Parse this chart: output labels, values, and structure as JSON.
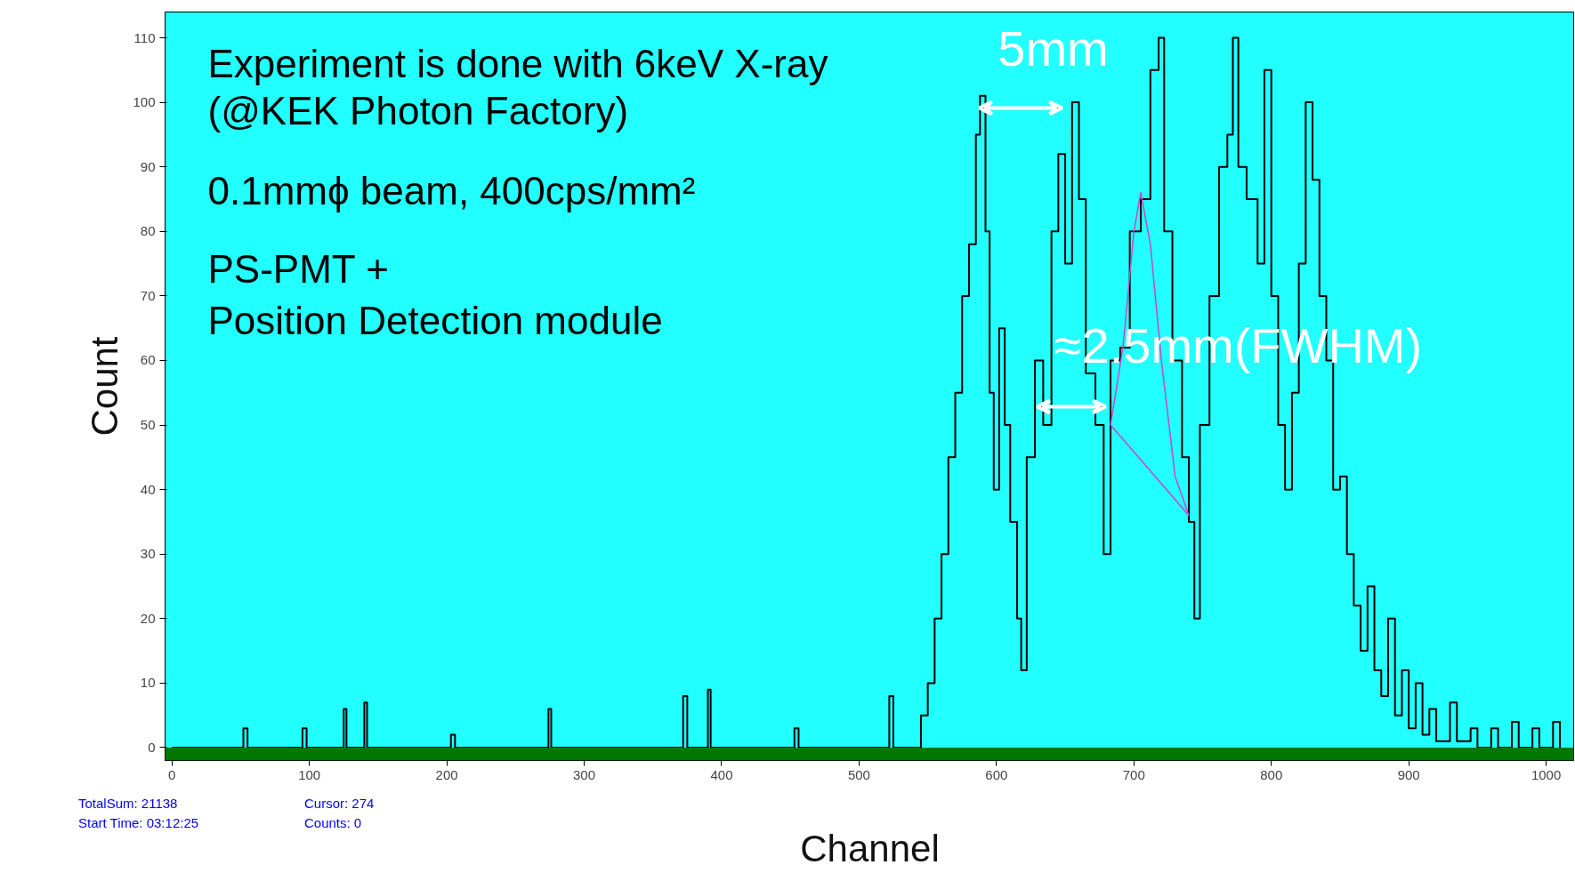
{
  "chart_data": {
    "type": "step",
    "xlabel": "Channel",
    "ylabel": "Count",
    "xlim": [
      -5,
      1020
    ],
    "ylim": [
      -2,
      114
    ],
    "xticks": [
      0,
      100,
      200,
      300,
      400,
      500,
      600,
      700,
      800,
      900,
      1000
    ],
    "yticks": [
      0,
      10,
      20,
      30,
      40,
      50,
      60,
      70,
      80,
      90,
      100,
      110
    ],
    "grid": false,
    "series": [
      {
        "color": "#000000",
        "x": [
          0,
          50,
          52,
          55,
          58,
          95,
          98,
          125,
          127,
          140,
          142,
          200,
          203,
          206,
          270,
          274,
          276,
          370,
          372,
          375,
          378,
          390,
          392,
          450,
          453,
          456,
          520,
          522,
          525,
          540,
          545,
          550,
          555,
          560,
          565,
          570,
          575,
          580,
          585,
          588,
          592,
          595,
          598,
          602,
          606,
          610,
          615,
          618,
          622,
          628,
          634,
          640,
          645,
          650,
          655,
          660,
          665,
          672,
          678,
          683,
          690,
          697,
          705,
          712,
          718,
          722,
          728,
          735,
          740,
          744,
          748,
          755,
          762,
          768,
          772,
          776,
          782,
          790,
          795,
          800,
          805,
          810,
          815,
          820,
          825,
          830,
          835,
          840,
          845,
          850,
          855,
          860,
          865,
          870,
          875,
          880,
          885,
          890,
          895,
          900,
          905,
          910,
          915,
          920,
          930,
          935,
          945,
          950,
          960,
          965,
          975,
          980,
          990,
          995,
          1005,
          1010
        ],
        "values": [
          0,
          0,
          3,
          0,
          0,
          3,
          0,
          6,
          0,
          7,
          0,
          0,
          2,
          0,
          0,
          6,
          0,
          0,
          8,
          0,
          0,
          9,
          0,
          0,
          3,
          0,
          0,
          8,
          0,
          0,
          5,
          10,
          20,
          30,
          45,
          55,
          70,
          78,
          95,
          101,
          80,
          55,
          40,
          65,
          50,
          35,
          20,
          12,
          45,
          60,
          50,
          80,
          92,
          75,
          100,
          85,
          58,
          50,
          30,
          60,
          62,
          80,
          85,
          105,
          110,
          80,
          60,
          45,
          35,
          20,
          50,
          70,
          90,
          95,
          110,
          90,
          85,
          75,
          105,
          70,
          50,
          40,
          55,
          75,
          100,
          88,
          70,
          60,
          40,
          42,
          30,
          22,
          15,
          25,
          12,
          8,
          20,
          5,
          12,
          3,
          10,
          2,
          6,
          1,
          7,
          1,
          3,
          0,
          3,
          0,
          4,
          0,
          3,
          0,
          4,
          0
        ]
      },
      {
        "type": "line",
        "color": "#cc44cc",
        "x": [
          683,
          692,
          700,
          705,
          712,
          720,
          730,
          740
        ],
        "values": [
          50,
          62,
          80,
          86,
          78,
          60,
          42,
          36
        ]
      },
      {
        "type": "line",
        "color": "#cc44cc",
        "x": [
          683,
          740
        ],
        "values": [
          50,
          36
        ]
      }
    ],
    "bands": [
      {
        "axis": "y",
        "from": -2,
        "to": 0,
        "color": "#007700"
      }
    ],
    "annotations": [
      "Experiment is done with 6keV X-ray",
      "(@KEK Photon Factory)",
      "0.1mmϕ beam, 400cps/mm²",
      "PS-PMT +",
      "Position Detection module",
      "TotalSum:   21138",
      "Start Time: 03:12:25",
      "Cursor:   274",
      "Counts:   0",
      "5mm",
      "≈2.5mm(FWHM)"
    ]
  }
}
